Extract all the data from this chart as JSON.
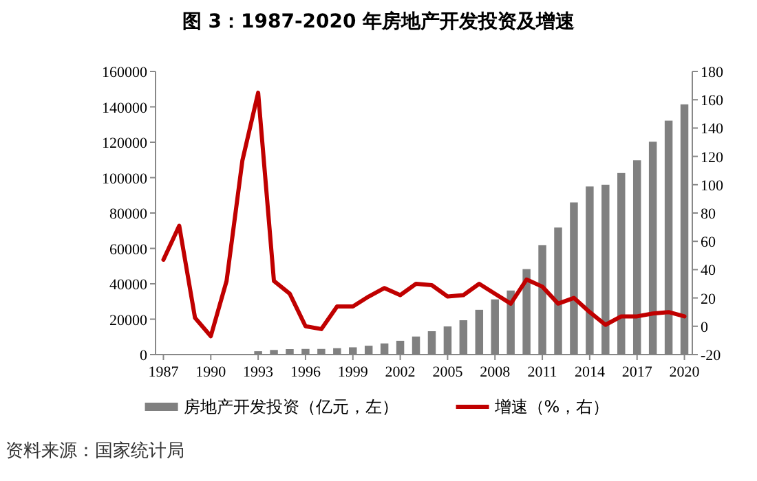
{
  "chart_data": {
    "type": "bar",
    "title": "图 3：1987-2020 年房地产开发投资及增速",
    "categories": [
      "1987",
      null,
      null,
      "1990",
      null,
      null,
      "1993",
      null,
      null,
      "1996",
      null,
      null,
      "1999",
      null,
      null,
      "2002",
      null,
      null,
      "2005",
      null,
      null,
      "2008",
      null,
      null,
      "2011",
      null,
      null,
      "2014",
      null,
      null,
      "2017",
      null,
      null,
      "2020"
    ],
    "series": [
      {
        "name": "房地产开发投资（亿元，左）",
        "color": "#808080",
        "values": [
          null,
          null,
          null,
          null,
          null,
          null,
          1900,
          2600,
          3100,
          3200,
          3200,
          3600,
          4100,
          5000,
          6300,
          7800,
          10200,
          13200,
          15900,
          19400,
          25300,
          31200,
          36200,
          48300,
          61800,
          71800,
          86000,
          95000,
          96000,
          102600,
          109800,
          120300,
          132200,
          141400
        ]
      },
      {
        "name": "增速（%，右）",
        "type": "line",
        "axis": "y2",
        "color": "#c00000",
        "values": [
          47,
          71,
          6,
          -7,
          32,
          117,
          165,
          32,
          23,
          0,
          -2,
          14,
          14,
          21,
          27,
          22,
          30,
          29,
          21,
          22,
          30,
          23,
          16,
          33,
          28,
          16,
          20,
          10,
          1,
          7,
          7,
          9,
          10,
          7
        ]
      }
    ],
    "ylim": [
      0,
      160000
    ],
    "yticks": [
      0,
      20000,
      40000,
      60000,
      80000,
      100000,
      120000,
      140000,
      160000
    ],
    "y2lim": [
      -20,
      180
    ],
    "y2ticks": [
      -20,
      0,
      20,
      40,
      60,
      80,
      100,
      120,
      140,
      160,
      180
    ],
    "legend": "bottom",
    "annotations": [
      "资料来源：国家统计局"
    ]
  }
}
